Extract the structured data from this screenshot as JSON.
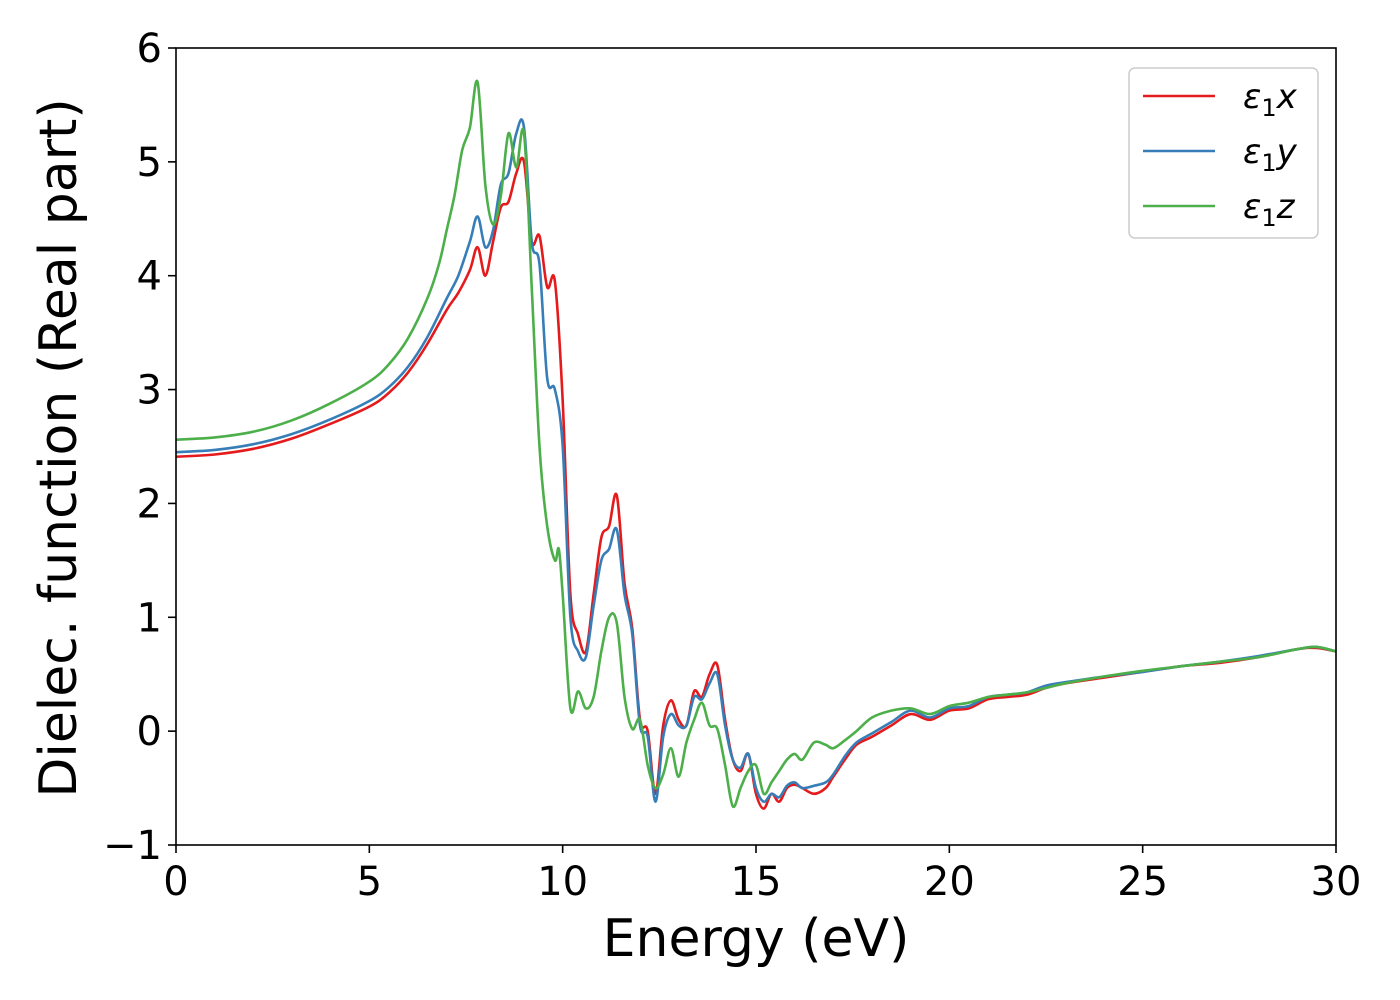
{
  "chart_data": {
    "type": "line",
    "xlabel": "Energy (eV)",
    "ylabel": "Dielec. function (Real part)",
    "xlim": [
      0,
      30
    ],
    "ylim": [
      -1,
      6
    ],
    "xticks": [
      0,
      5,
      10,
      15,
      20,
      25,
      30
    ],
    "xtick_labels": [
      "0",
      "5",
      "10",
      "15",
      "20",
      "25",
      "30"
    ],
    "yticks": [
      -1,
      0,
      1,
      2,
      3,
      4,
      5,
      6
    ],
    "ytick_labels": [
      "−1",
      "0",
      "1",
      "2",
      "3",
      "4",
      "5",
      "6"
    ],
    "grid": false,
    "legend_position": "top-right",
    "series": [
      {
        "name": "ε₁x",
        "legend_main": "ε",
        "legend_sub": "1",
        "legend_var": "x",
        "color": "#e41a1c",
        "x": [
          0,
          1,
          2,
          3,
          4,
          5,
          5.5,
          6,
          6.5,
          7,
          7.3,
          7.6,
          7.8,
          8.0,
          8.2,
          8.4,
          8.6,
          8.8,
          9.0,
          9.2,
          9.4,
          9.6,
          9.8,
          10.0,
          10.2,
          10.4,
          10.6,
          10.8,
          11.0,
          11.2,
          11.4,
          11.6,
          11.8,
          12.0,
          12.2,
          12.4,
          12.6,
          12.8,
          13.0,
          13.2,
          13.4,
          13.6,
          13.8,
          14.0,
          14.2,
          14.4,
          14.6,
          14.8,
          15.0,
          15.2,
          15.4,
          15.6,
          15.8,
          16.0,
          16.2,
          16.5,
          16.8,
          17.0,
          17.3,
          17.6,
          18.0,
          18.5,
          19.0,
          19.5,
          20.0,
          20.5,
          21.0,
          21.5,
          22.0,
          22.5,
          23.0,
          24.0,
          25.0,
          26.0,
          27.0,
          28.0,
          29.0,
          29.5,
          30.0
        ],
        "y": [
          2.41,
          2.43,
          2.48,
          2.57,
          2.7,
          2.85,
          2.97,
          3.15,
          3.4,
          3.7,
          3.85,
          4.05,
          4.25,
          4.0,
          4.3,
          4.6,
          4.65,
          4.9,
          5.0,
          4.3,
          4.35,
          3.9,
          3.95,
          2.9,
          1.2,
          0.85,
          0.7,
          1.2,
          1.7,
          1.8,
          2.07,
          1.3,
          0.9,
          0.1,
          0.0,
          -0.55,
          0.05,
          0.27,
          0.1,
          0.05,
          0.35,
          0.3,
          0.5,
          0.58,
          0.1,
          -0.25,
          -0.35,
          -0.2,
          -0.55,
          -0.68,
          -0.55,
          -0.62,
          -0.5,
          -0.47,
          -0.5,
          -0.55,
          -0.5,
          -0.4,
          -0.25,
          -0.12,
          -0.05,
          0.05,
          0.15,
          0.1,
          0.18,
          0.2,
          0.28,
          0.3,
          0.32,
          0.38,
          0.42,
          0.47,
          0.52,
          0.57,
          0.6,
          0.65,
          0.72,
          0.73,
          0.7
        ]
      },
      {
        "name": "ε₁y",
        "legend_main": "ε",
        "legend_sub": "1",
        "legend_var": "y",
        "color": "#377eb8",
        "x": [
          0,
          1,
          2,
          3,
          4,
          5,
          5.5,
          6,
          6.5,
          7,
          7.3,
          7.6,
          7.8,
          8.0,
          8.2,
          8.4,
          8.6,
          8.8,
          9.0,
          9.2,
          9.4,
          9.6,
          9.8,
          10.0,
          10.2,
          10.4,
          10.6,
          10.8,
          11.0,
          11.2,
          11.4,
          11.6,
          11.8,
          12.0,
          12.2,
          12.4,
          12.6,
          12.8,
          13.0,
          13.2,
          13.4,
          13.6,
          13.8,
          14.0,
          14.2,
          14.4,
          14.6,
          14.8,
          15.0,
          15.2,
          15.4,
          15.6,
          15.8,
          16.0,
          16.2,
          16.5,
          16.8,
          17.0,
          17.3,
          17.6,
          18.0,
          18.5,
          19.0,
          19.5,
          20.0,
          20.5,
          21.0,
          21.5,
          22.0,
          22.5,
          23.0,
          24.0,
          25.0,
          26.0,
          27.0,
          28.0,
          29.0,
          29.5,
          30.0
        ],
        "y": [
          2.45,
          2.47,
          2.52,
          2.61,
          2.74,
          2.9,
          3.02,
          3.2,
          3.46,
          3.8,
          4.0,
          4.3,
          4.52,
          4.25,
          4.4,
          4.8,
          4.9,
          5.25,
          5.3,
          4.3,
          4.1,
          3.1,
          3.0,
          2.5,
          1.0,
          0.7,
          0.65,
          1.1,
          1.5,
          1.6,
          1.77,
          1.2,
          0.85,
          0.05,
          -0.05,
          -0.62,
          -0.05,
          0.15,
          0.05,
          0.05,
          0.3,
          0.28,
          0.42,
          0.5,
          0.05,
          -0.25,
          -0.32,
          -0.2,
          -0.5,
          -0.62,
          -0.55,
          -0.58,
          -0.48,
          -0.45,
          -0.5,
          -0.48,
          -0.45,
          -0.38,
          -0.22,
          -0.1,
          -0.02,
          0.08,
          0.18,
          0.12,
          0.2,
          0.22,
          0.3,
          0.32,
          0.34,
          0.4,
          0.43,
          0.48,
          0.52,
          0.57,
          0.61,
          0.66,
          0.72,
          0.74,
          0.7
        ]
      },
      {
        "name": "ε₁z",
        "legend_main": "ε",
        "legend_sub": "1",
        "legend_var": "z",
        "color": "#4daf4a",
        "x": [
          0,
          1,
          2,
          3,
          4,
          5,
          5.5,
          6,
          6.5,
          6.8,
          7.0,
          7.2,
          7.4,
          7.6,
          7.8,
          8.0,
          8.2,
          8.4,
          8.6,
          8.8,
          9.0,
          9.2,
          9.4,
          9.6,
          9.8,
          9.9,
          10.0,
          10.2,
          10.4,
          10.6,
          10.8,
          11.0,
          11.2,
          11.4,
          11.6,
          11.8,
          12.0,
          12.2,
          12.4,
          12.6,
          12.8,
          13.0,
          13.2,
          13.4,
          13.6,
          13.8,
          14.0,
          14.2,
          14.4,
          14.6,
          14.8,
          15.0,
          15.2,
          15.4,
          15.6,
          15.8,
          16.0,
          16.2,
          16.5,
          16.8,
          17.0,
          17.3,
          17.6,
          18.0,
          18.5,
          19.0,
          19.5,
          20.0,
          20.5,
          21.0,
          21.5,
          22.0,
          22.5,
          23.0,
          24.0,
          25.0,
          26.0,
          27.0,
          28.0,
          29.0,
          29.5,
          30.0
        ],
        "y": [
          2.56,
          2.58,
          2.63,
          2.73,
          2.88,
          3.07,
          3.22,
          3.45,
          3.8,
          4.1,
          4.4,
          4.7,
          5.1,
          5.3,
          5.7,
          4.8,
          4.45,
          4.7,
          5.25,
          4.95,
          5.25,
          3.9,
          2.5,
          1.8,
          1.5,
          1.6,
          1.2,
          0.2,
          0.35,
          0.2,
          0.3,
          0.7,
          1.0,
          0.95,
          0.3,
          0.02,
          0.1,
          -0.3,
          -0.5,
          -0.38,
          -0.15,
          -0.4,
          -0.1,
          0.1,
          0.25,
          0.05,
          0.02,
          -0.3,
          -0.66,
          -0.5,
          -0.35,
          -0.3,
          -0.55,
          -0.45,
          -0.35,
          -0.25,
          -0.2,
          -0.25,
          -0.1,
          -0.12,
          -0.15,
          -0.08,
          0.0,
          0.12,
          0.18,
          0.2,
          0.15,
          0.22,
          0.25,
          0.3,
          0.32,
          0.34,
          0.38,
          0.42,
          0.48,
          0.53,
          0.57,
          0.61,
          0.65,
          0.72,
          0.74,
          0.7
        ]
      }
    ]
  }
}
